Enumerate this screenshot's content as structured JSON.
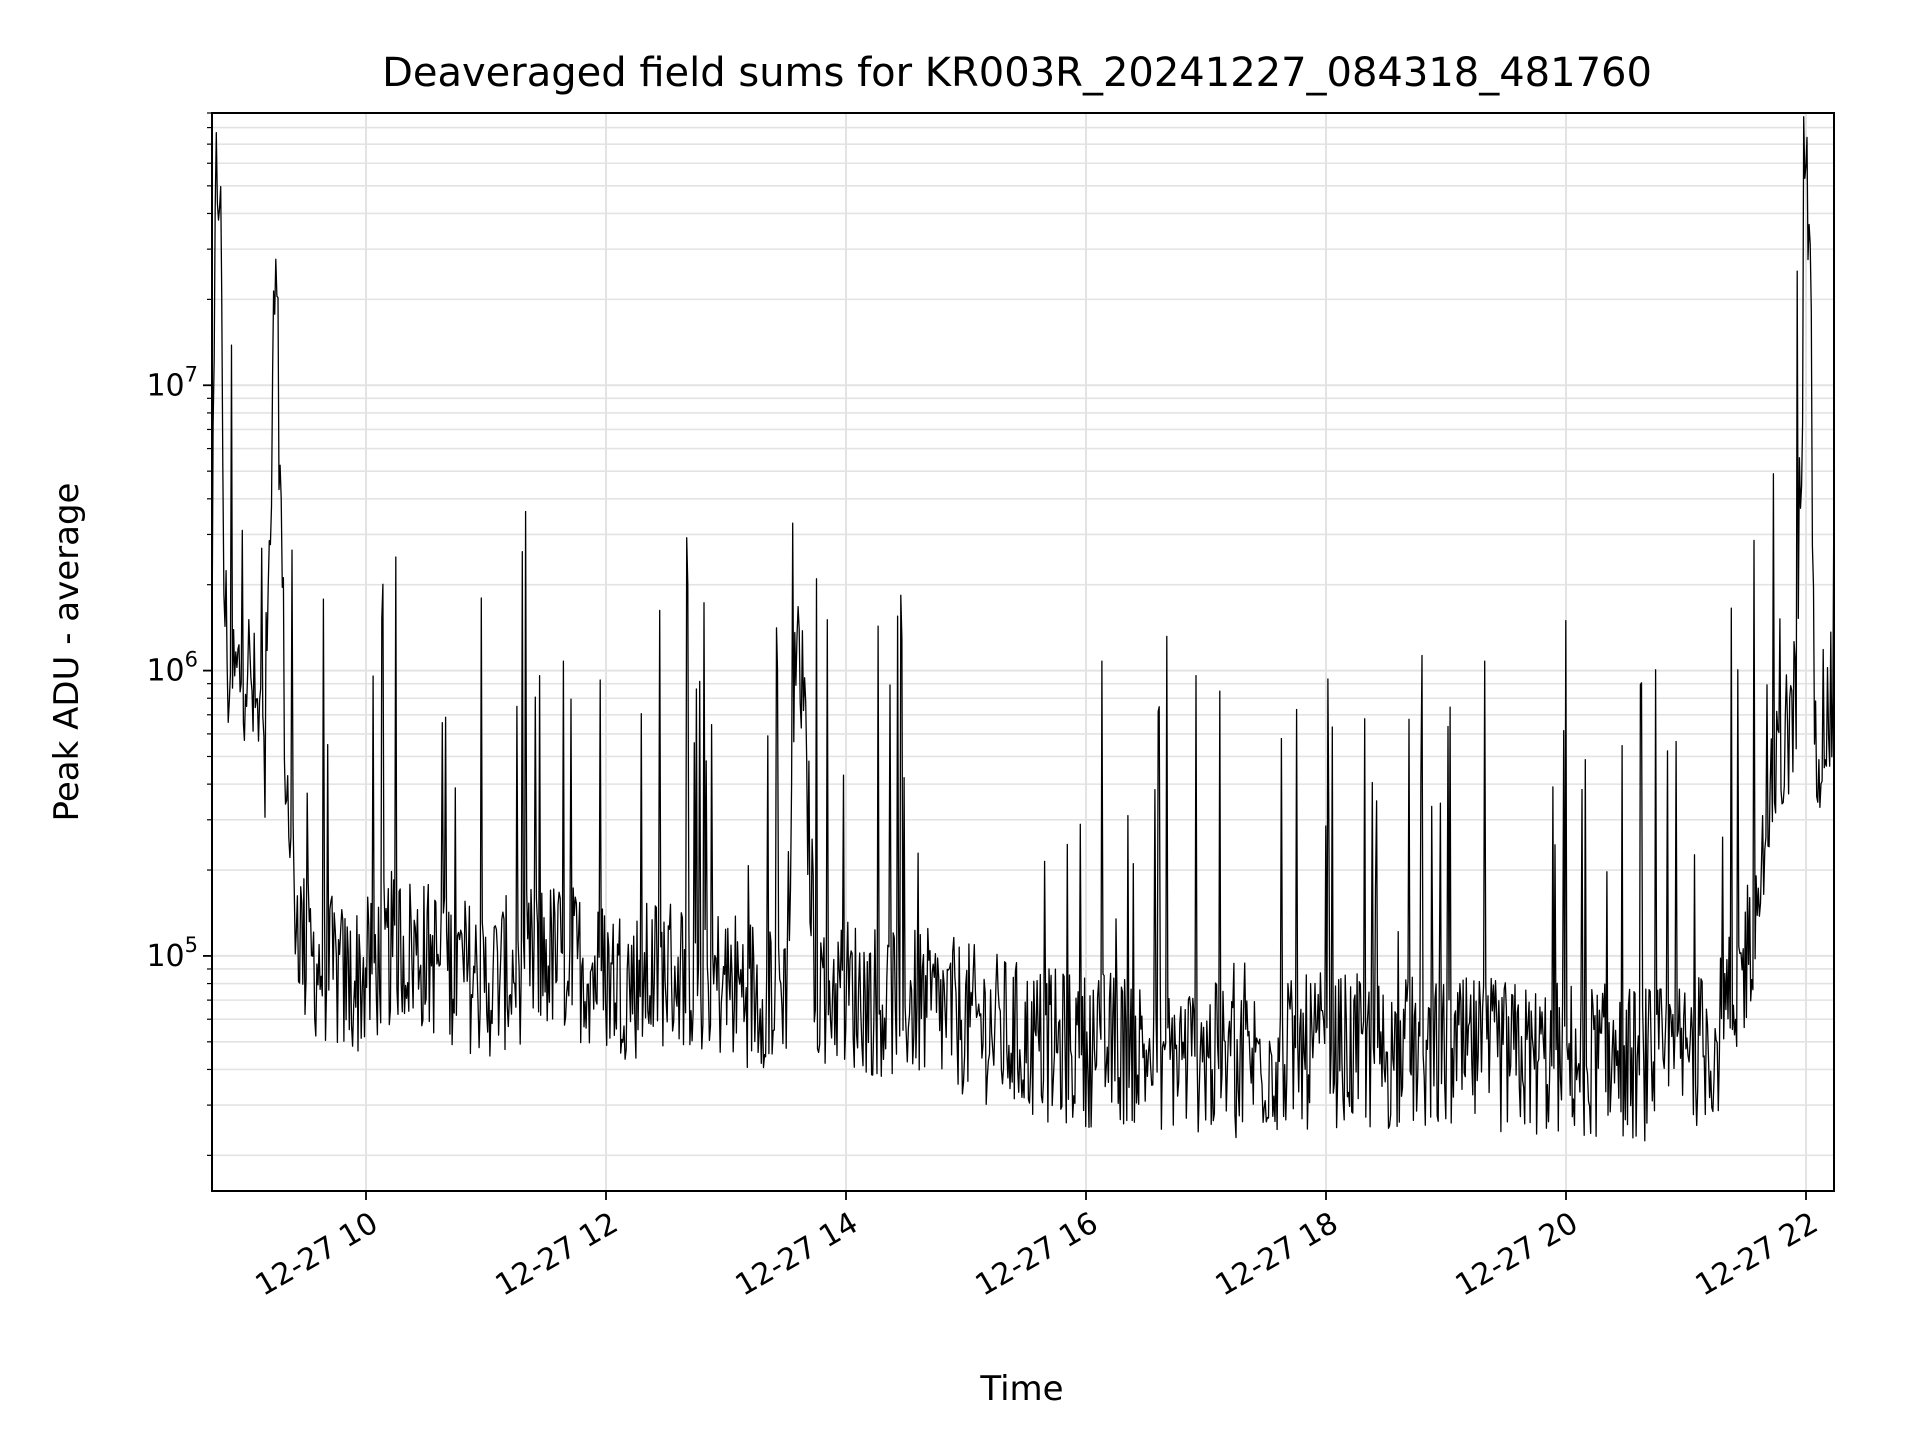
{
  "chart_data": {
    "type": "line",
    "title": "Deaveraged field sums for KR003R_20241227_084318_481760",
    "xlabel": "Time",
    "ylabel": "Peak ADU - average",
    "x_scale": "time",
    "y_scale": "log",
    "xlim": [
      "2024-12-27 08:43",
      "2024-12-27 22:14"
    ],
    "ylim": [
      15000,
      90000000
    ],
    "grid": true,
    "line_color": "#000000",
    "x_ticks": [
      "12-27 10",
      "12-27 12",
      "12-27 14",
      "12-27 16",
      "12-27 18",
      "12-27 20",
      "12-27 22"
    ],
    "y_ticks": [
      {
        "value": 100000,
        "base": "10",
        "exp": "5"
      },
      {
        "value": 1000000,
        "base": "10",
        "exp": "6"
      },
      {
        "value": 10000000,
        "base": "10",
        "exp": "7"
      }
    ],
    "series": [
      {
        "x": [
          "2024-12-27 08:43",
          "2024-12-27 08:45",
          "2024-12-27 08:47",
          "2024-12-27 08:49",
          "2024-12-27 08:51",
          "2024-12-27 08:55",
          "2024-12-27 09:00",
          "2024-12-27 09:05",
          "2024-12-27 09:10",
          "2024-12-27 09:15",
          "2024-12-27 09:20",
          "2024-12-27 09:25",
          "2024-12-27 09:30",
          "2024-12-27 09:40",
          "2024-12-27 09:50",
          "2024-12-27 10:00",
          "2024-12-27 10:15",
          "2024-12-27 10:30",
          "2024-12-27 10:45",
          "2024-12-27 11:00",
          "2024-12-27 11:15",
          "2024-12-27 11:30",
          "2024-12-27 11:45",
          "2024-12-27 12:00",
          "2024-12-27 12:15",
          "2024-12-27 12:30",
          "2024-12-27 12:45",
          "2024-12-27 13:00",
          "2024-12-27 13:15",
          "2024-12-27 13:30",
          "2024-12-27 13:36",
          "2024-12-27 13:45",
          "2024-12-27 14:00",
          "2024-12-27 14:15",
          "2024-12-27 14:30",
          "2024-12-27 14:45",
          "2024-12-27 15:00",
          "2024-12-27 15:15",
          "2024-12-27 15:30",
          "2024-12-27 15:45",
          "2024-12-27 16:00",
          "2024-12-27 16:15",
          "2024-12-27 16:30",
          "2024-12-27 16:45",
          "2024-12-27 17:00",
          "2024-12-27 17:15",
          "2024-12-27 17:30",
          "2024-12-27 17:45",
          "2024-12-27 18:00",
          "2024-12-27 18:15",
          "2024-12-27 18:30",
          "2024-12-27 18:45",
          "2024-12-27 19:00",
          "2024-12-27 19:15",
          "2024-12-27 19:30",
          "2024-12-27 19:45",
          "2024-12-27 20:00",
          "2024-12-27 20:15",
          "2024-12-27 20:30",
          "2024-12-27 20:45",
          "2024-12-27 21:00",
          "2024-12-27 21:15",
          "2024-12-27 21:25",
          "2024-12-27 21:35",
          "2024-12-27 21:45",
          "2024-12-27 21:55",
          "2024-12-27 22:00",
          "2024-12-27 22:02",
          "2024-12-27 22:04",
          "2024-12-27 22:06",
          "2024-12-27 22:10",
          "2024-12-27 22:14"
        ],
        "y": [
          1500000,
          50000000,
          60000000,
          2000000,
          1000000,
          900000,
          1100000,
          700000,
          500000,
          30000000,
          400000,
          150000,
          100000,
          90000,
          80000,
          85000,
          110000,
          100000,
          90000,
          80000,
          90000,
          100000,
          95000,
          85000,
          80000,
          90000,
          85000,
          80000,
          75000,
          80000,
          1700000,
          80000,
          75000,
          70000,
          70000,
          65000,
          60000,
          55000,
          50000,
          48000,
          47000,
          48000,
          46000,
          45000,
          44000,
          42000,
          44000,
          45000,
          47000,
          46000,
          45000,
          46000,
          44000,
          45000,
          44000,
          43000,
          44000,
          43000,
          42000,
          42000,
          45000,
          50000,
          70000,
          150000,
          400000,
          800000,
          50000000,
          40000000,
          700000,
          600000,
          650000,
          800000
        ]
      }
    ]
  }
}
